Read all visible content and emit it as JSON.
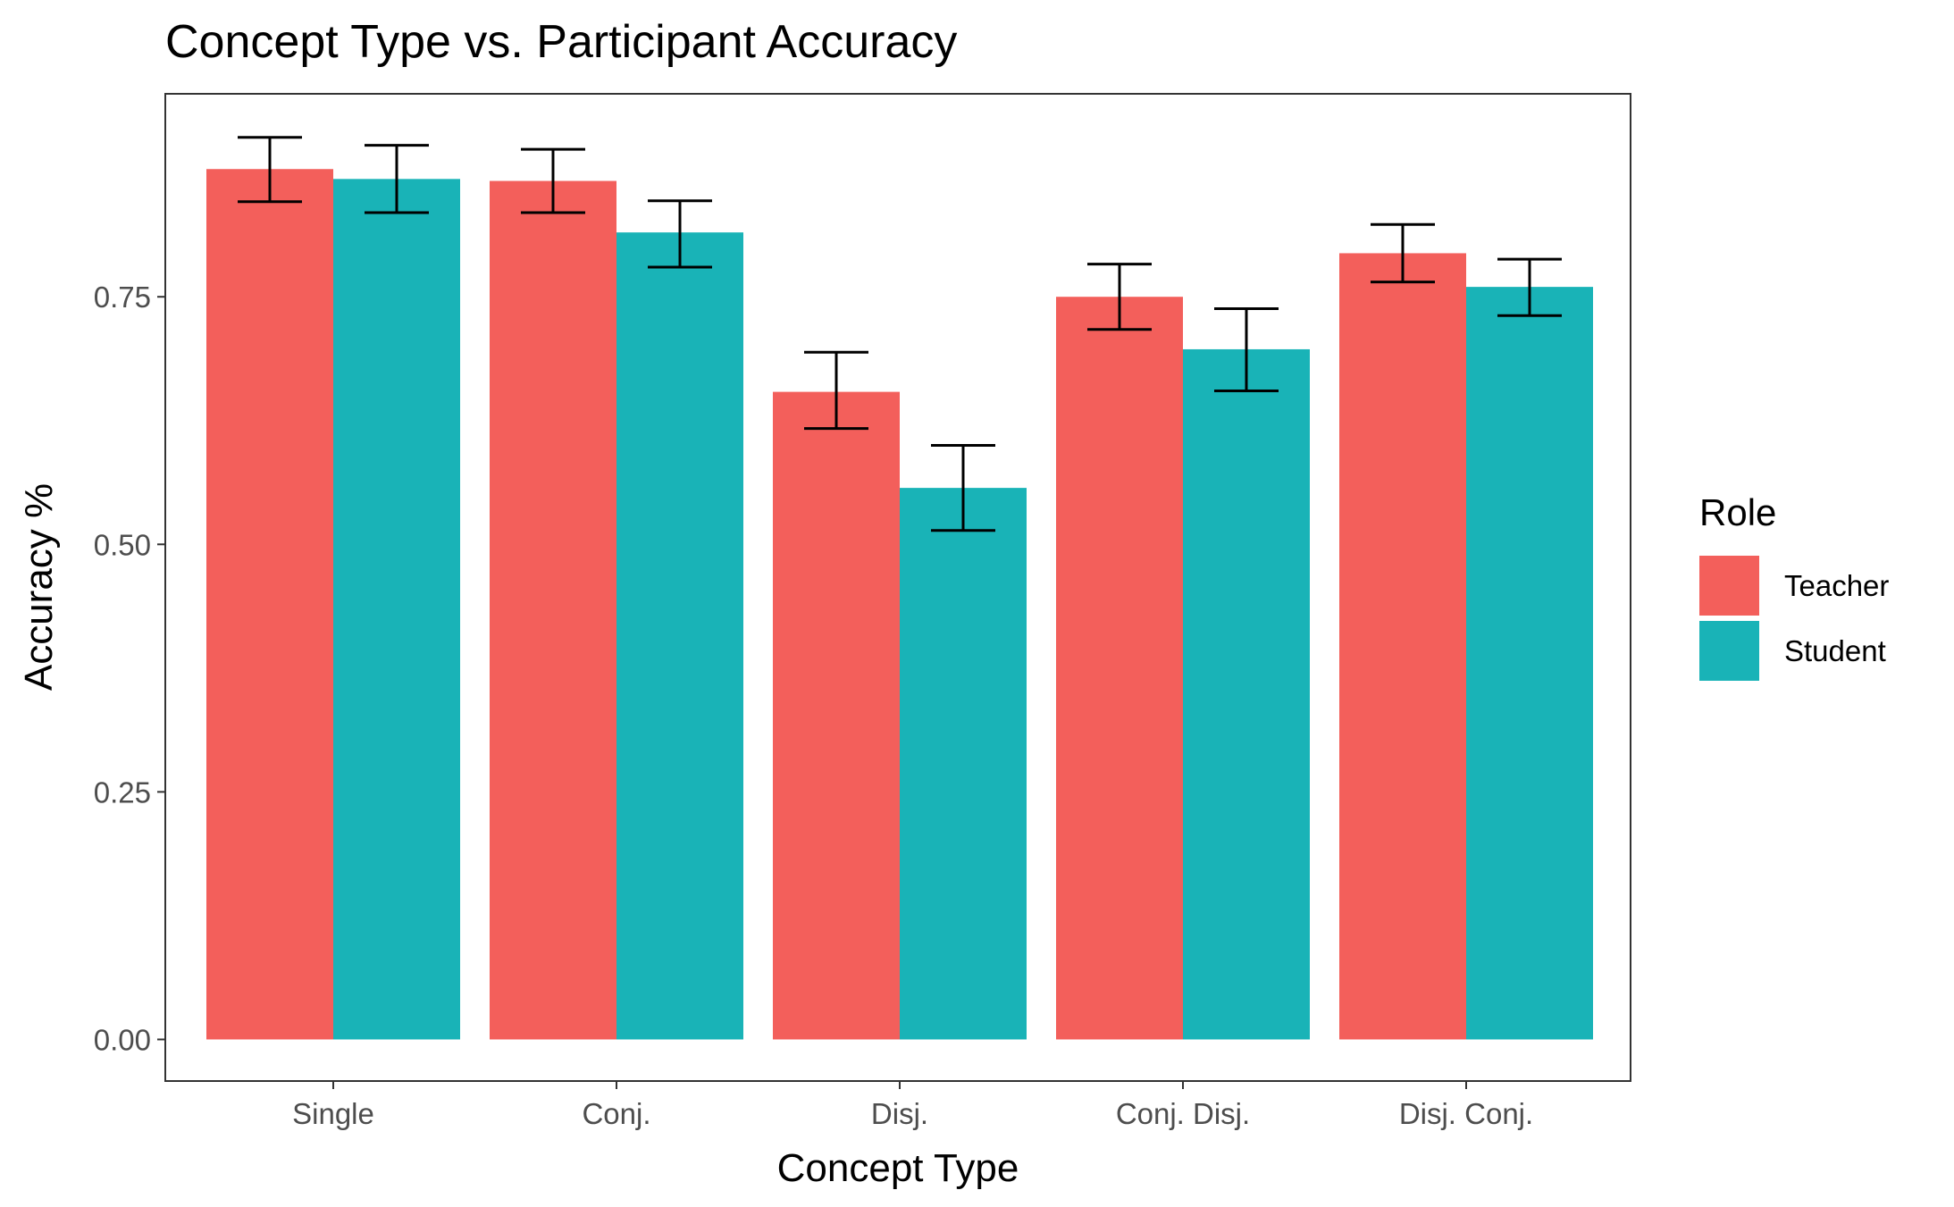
{
  "chart_data": {
    "type": "bar",
    "title": "Concept Type vs. Participant Accuracy",
    "xlabel": "Concept Type",
    "ylabel": "Accuracy %",
    "categories": [
      "Single",
      "Conj.",
      "Disj.",
      "Conj. Disj.",
      "Disj. Conj."
    ],
    "series": [
      {
        "name": "Teacher",
        "color": "#F35F5B",
        "values": [
          0.879,
          0.867,
          0.654,
          0.75,
          0.794
        ],
        "err_low": [
          0.846,
          0.835,
          0.617,
          0.717,
          0.765
        ],
        "err_high": [
          0.911,
          0.899,
          0.694,
          0.783,
          0.823
        ]
      },
      {
        "name": "Student",
        "color": "#19B3B7",
        "values": [
          0.869,
          0.815,
          0.557,
          0.697,
          0.76
        ],
        "err_low": [
          0.835,
          0.78,
          0.514,
          0.655,
          0.731
        ],
        "err_high": [
          0.903,
          0.847,
          0.6,
          0.738,
          0.788
        ]
      }
    ],
    "yticks": [
      "0.00",
      "0.25",
      "0.50",
      "0.75"
    ],
    "ytick_values": [
      0,
      0.25,
      0.5,
      0.75
    ],
    "ylim": [
      -0.042,
      0.955
    ],
    "grid": false,
    "legend": {
      "title": "Role",
      "placement": "right"
    }
  }
}
